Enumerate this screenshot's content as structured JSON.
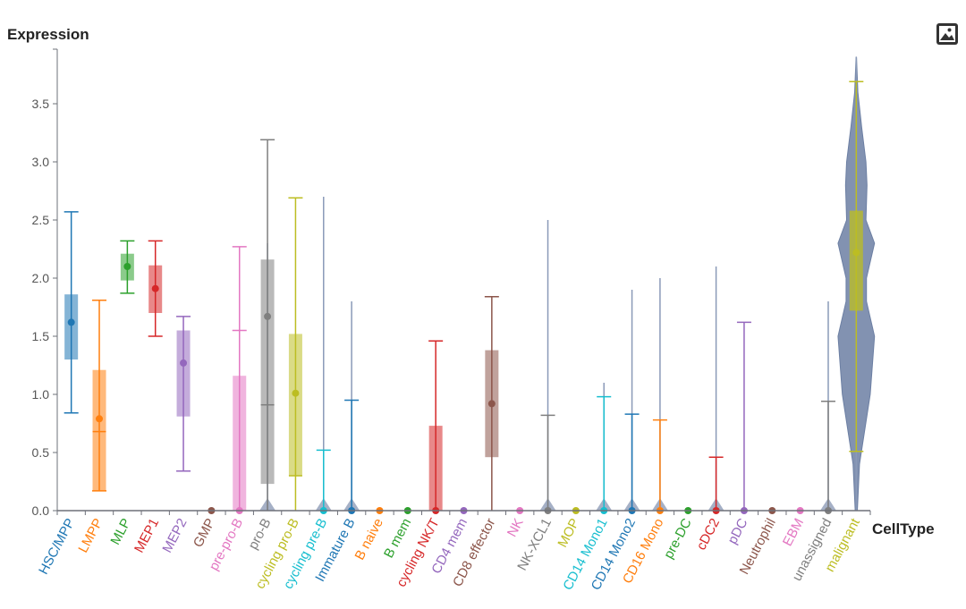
{
  "chart_data": {
    "type": "violin-box",
    "ylabel": "Expression",
    "xlabel": "CellType",
    "ylim": [
      0,
      3.9
    ],
    "yticks": [
      "0.0",
      "0.5",
      "1.0",
      "1.5",
      "2.0",
      "2.5",
      "3.0",
      "3.5"
    ],
    "categories": [
      {
        "name": "HSC/MPP",
        "color": "#1f77b4",
        "min": 0.84,
        "q1": 1.3,
        "median": 1.62,
        "q3": 1.86,
        "max": 2.57,
        "mean": 1.62,
        "violinMax": 0
      },
      {
        "name": "LMPP",
        "color": "#ff7f0e",
        "min": 0.17,
        "q1": 0.17,
        "median": 0.68,
        "q3": 1.21,
        "max": 1.81,
        "mean": 0.79,
        "violinMax": 0
      },
      {
        "name": "MLP",
        "color": "#2ca02c",
        "min": 1.87,
        "q1": 1.98,
        "median": 2.1,
        "q3": 2.21,
        "max": 2.32,
        "mean": 2.1,
        "violinMax": 0
      },
      {
        "name": "MEP1",
        "color": "#d62728",
        "min": 1.5,
        "q1": 1.7,
        "median": 1.91,
        "q3": 2.11,
        "max": 2.32,
        "mean": 1.91,
        "violinMax": 0
      },
      {
        "name": "MEP2",
        "color": "#9467bd",
        "min": 0.34,
        "q1": 0.81,
        "median": 1.27,
        "q3": 1.55,
        "max": 1.67,
        "mean": 1.27,
        "violinMax": 0
      },
      {
        "name": "GMP",
        "color": "#8c564b",
        "min": 0,
        "q1": 0,
        "median": 0,
        "q3": 0,
        "max": 0,
        "mean": 0,
        "violinMax": 0
      },
      {
        "name": "pre-pro-B",
        "color": "#e377c2",
        "min": 0,
        "q1": 0,
        "median": 0,
        "q3": 1.16,
        "max": 2.27,
        "mean": 0,
        "upperTick": 1.55,
        "violinMax": 0
      },
      {
        "name": "pro-B",
        "color": "#7f7f7f",
        "min": 0,
        "q1": 0.23,
        "median": 0.91,
        "q3": 2.16,
        "max": 3.19,
        "mean": 1.67,
        "violinMax": 2.3
      },
      {
        "name": "cycling pro-B",
        "color": "#bcbd22",
        "min": 0,
        "q1": 0.3,
        "median": 0.3,
        "q3": 1.52,
        "max": 2.69,
        "mean": 1.01,
        "violinMax": 0
      },
      {
        "name": "cycling pre-B",
        "color": "#17becf",
        "min": 0,
        "q1": 0,
        "median": 0,
        "q3": 0,
        "max": 0.52,
        "mean": 0,
        "violinMax": 2.7
      },
      {
        "name": "Immature B",
        "color": "#1f77b4",
        "min": 0,
        "q1": 0,
        "median": 0,
        "q3": 0,
        "max": 0.95,
        "mean": 0,
        "violinMax": 1.8
      },
      {
        "name": "B naive",
        "color": "#ff7f0e",
        "min": 0,
        "q1": 0,
        "median": 0,
        "q3": 0,
        "max": 0,
        "mean": 0,
        "violinMax": 0
      },
      {
        "name": "B mem",
        "color": "#2ca02c",
        "min": 0,
        "q1": 0,
        "median": 0,
        "q3": 0,
        "max": 0,
        "mean": 0,
        "violinMax": 0
      },
      {
        "name": "cycling NK/T",
        "color": "#d62728",
        "min": 0,
        "q1": 0,
        "median": 0,
        "q3": 0.73,
        "max": 1.46,
        "mean": 0,
        "violinMax": 0
      },
      {
        "name": "CD4 mem",
        "color": "#9467bd",
        "min": 0,
        "q1": 0,
        "median": 0,
        "q3": 0,
        "max": 0,
        "mean": 0,
        "violinMax": 0
      },
      {
        "name": "CD8 effector",
        "color": "#8c564b",
        "min": 0,
        "q1": 0.46,
        "median": 0.92,
        "q3": 1.38,
        "max": 1.84,
        "mean": 0.92,
        "violinMax": 0
      },
      {
        "name": "NK",
        "color": "#e377c2",
        "min": 0,
        "q1": 0,
        "median": 0,
        "q3": 0,
        "max": 0,
        "mean": 0,
        "violinMax": 0
      },
      {
        "name": "NK-XCL1",
        "color": "#7f7f7f",
        "min": 0,
        "q1": 0,
        "median": 0,
        "q3": 0,
        "max": 0.82,
        "mean": 0,
        "violinMax": 2.5
      },
      {
        "name": "MOP",
        "color": "#bcbd22",
        "min": 0,
        "q1": 0,
        "median": 0,
        "q3": 0,
        "max": 0,
        "mean": 0,
        "violinMax": 0
      },
      {
        "name": "CD14 Mono1",
        "color": "#17becf",
        "min": 0,
        "q1": 0,
        "median": 0,
        "q3": 0,
        "max": 0.98,
        "mean": 0,
        "violinMax": 1.1
      },
      {
        "name": "CD14 Mono2",
        "color": "#1f77b4",
        "min": 0,
        "q1": 0,
        "median": 0,
        "q3": 0,
        "max": 0.83,
        "mean": 0,
        "violinMax": 1.9
      },
      {
        "name": "CD16 Mono",
        "color": "#ff7f0e",
        "min": 0,
        "q1": 0,
        "median": 0,
        "q3": 0,
        "max": 0.78,
        "mean": 0,
        "violinMax": 2.0
      },
      {
        "name": "pre-DC",
        "color": "#2ca02c",
        "min": 0,
        "q1": 0,
        "median": 0,
        "q3": 0,
        "max": 0,
        "mean": 0,
        "violinMax": 0
      },
      {
        "name": "cDC2",
        "color": "#d62728",
        "min": 0,
        "q1": 0,
        "median": 0,
        "q3": 0,
        "max": 0.46,
        "mean": 0,
        "violinMax": 2.1
      },
      {
        "name": "pDC",
        "color": "#9467bd",
        "min": 0,
        "q1": 0,
        "median": 0,
        "q3": 0,
        "max": 1.62,
        "mean": 0,
        "violinMax": 0
      },
      {
        "name": "Neutrophil",
        "color": "#8c564b",
        "min": 0,
        "q1": 0,
        "median": 0,
        "q3": 0,
        "max": 0,
        "mean": 0,
        "violinMax": 0
      },
      {
        "name": "EBM",
        "color": "#e377c2",
        "min": 0,
        "q1": 0,
        "median": 0,
        "q3": 0,
        "max": 0,
        "mean": 0,
        "violinMax": 0
      },
      {
        "name": "unassigned",
        "color": "#7f7f7f",
        "min": 0,
        "q1": 0,
        "median": 0,
        "q3": 0,
        "max": 0.94,
        "mean": 0,
        "violinMax": 1.8
      },
      {
        "name": "malignant",
        "color": "#bcbd22",
        "min": 0.51,
        "q1": 1.72,
        "median": 2.22,
        "q3": 2.58,
        "max": 3.69,
        "mean": 2.22,
        "violinMax": 3.9,
        "violin": true
      }
    ]
  },
  "toolbar": {
    "save_icon": "image-save-icon"
  }
}
